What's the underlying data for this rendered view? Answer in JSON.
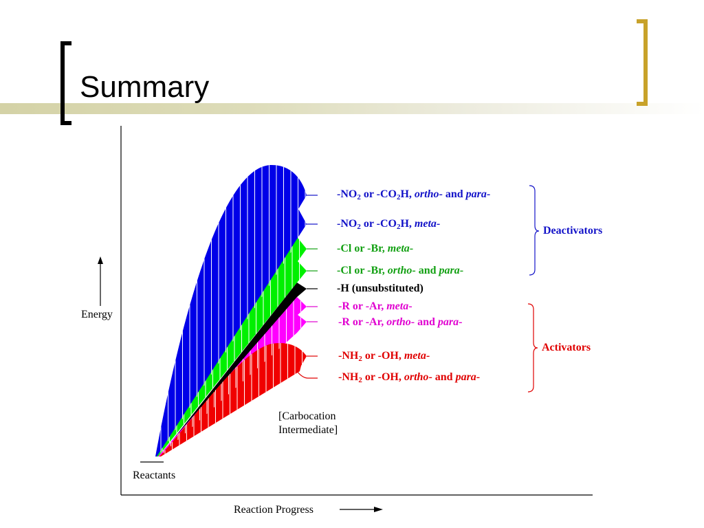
{
  "slide": {
    "title": "Summary"
  },
  "axes": {
    "y_label": "Energy",
    "x_label": "Reaction Progress"
  },
  "annotations": {
    "reactants": "Reactants",
    "intermediate_line1": "[Carbocation",
    "intermediate_line2": "Intermediate]"
  },
  "groups": {
    "deactivators": "Deactivators",
    "activators": "Activators"
  },
  "colors": {
    "blue": "#1212c8",
    "green": "#12a012",
    "black": "#000000",
    "magenta": "#e000d0",
    "red": "#e00000",
    "accent_bracket": "#c8a22a"
  },
  "substituents": [
    {
      "pre": "-",
      "main": "NO",
      "sub": "2",
      "mid": " or -CO",
      "sub2": "2",
      "post": "H, ",
      "orient1": "ortho",
      "conn": "- and ",
      "orient2": "para",
      "tail": "-",
      "color": "blue"
    },
    {
      "pre": "-",
      "main": "NO",
      "sub": "2",
      "mid": " or -CO",
      "sub2": "2",
      "post": "H, ",
      "orient1": "meta",
      "conn": "-",
      "orient2": "",
      "tail": "",
      "color": "blue"
    },
    {
      "pre": "-",
      "main": "Cl or -Br, ",
      "sub": "",
      "mid": "",
      "sub2": "",
      "post": "",
      "orient1": "meta",
      "conn": "-",
      "orient2": "",
      "tail": "",
      "color": "green"
    },
    {
      "pre": "-",
      "main": "Cl or -Br, ",
      "sub": "",
      "mid": "",
      "sub2": "",
      "post": "",
      "orient1": "ortho",
      "conn": "- and ",
      "orient2": "para",
      "tail": "-",
      "color": "green"
    },
    {
      "pre": "-",
      "main": "H  (unsubstituted)",
      "sub": "",
      "mid": "",
      "sub2": "",
      "post": "",
      "orient1": "",
      "conn": "",
      "orient2": "",
      "tail": "",
      "color": "black"
    },
    {
      "pre": "-",
      "main": "R or -Ar, ",
      "sub": "",
      "mid": "",
      "sub2": "",
      "post": "",
      "orient1": "meta",
      "conn": "-",
      "orient2": "",
      "tail": "",
      "color": "magenta"
    },
    {
      "pre": "-",
      "main": "R or -Ar, ",
      "sub": "",
      "mid": "",
      "sub2": "",
      "post": "",
      "orient1": "ortho",
      "conn": "- and ",
      "orient2": "para",
      "tail": "-",
      "color": "magenta"
    },
    {
      "pre": "-",
      "main": "NH",
      "sub": "2",
      "mid": " or -OH, ",
      "sub2": "",
      "post": "",
      "orient1": "meta",
      "conn": "-",
      "orient2": "",
      "tail": "",
      "color": "red"
    },
    {
      "pre": "-",
      "main": "NH",
      "sub": "2",
      "mid": " or -OH, ",
      "sub2": "",
      "post": "",
      "orient1": "ortho",
      "conn": "- and ",
      "orient2": "para",
      "tail": "-",
      "color": "red"
    }
  ]
}
